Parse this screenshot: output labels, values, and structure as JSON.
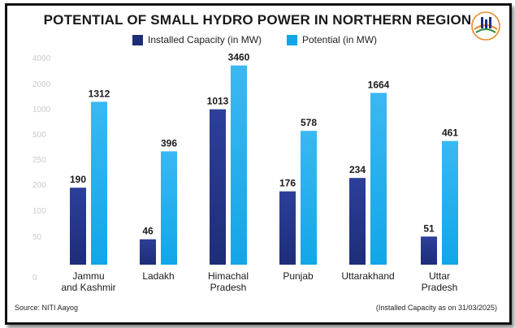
{
  "colors": {
    "installed": "#1e2d78",
    "potential": "#12a6e8",
    "installed_top": "#2c3f9a",
    "potential_top": "#3ab8f2"
  },
  "logo": {
    "icon": "pib-logo-icon"
  },
  "chart_data": {
    "type": "bar",
    "title": "POTENTIAL OF SMALL HYDRO POWER IN NORTHERN REGION",
    "categories": [
      [
        "Jammu",
        "and Kashmir"
      ],
      [
        "Ladakh"
      ],
      [
        "Himachal",
        "Pradesh"
      ],
      [
        "Punjab"
      ],
      [
        "Uttarakhand"
      ],
      [
        "Uttar",
        "Pradesh"
      ]
    ],
    "series": [
      {
        "name": "Installed Capacity (in MW)",
        "values": [
          190,
          46,
          1013,
          176,
          234,
          51
        ],
        "labels": [
          "190",
          "46",
          "1013",
          "176",
          "234",
          "51"
        ]
      },
      {
        "name": "Potential (in MW)",
        "values": [
          1312,
          396,
          3460,
          578,
          1664,
          461
        ],
        "labels": [
          "1312",
          "396",
          "3460",
          "578",
          "1664",
          "461"
        ]
      }
    ],
    "yticks": [
      "0",
      "50",
      "100",
      "150",
      "200",
      "250",
      "300",
      "350",
      "4000"
    ],
    "yticks_visible": [
      "0",
      "50",
      "100",
      "200",
      "250",
      "500",
      "1000",
      "2000",
      "4000"
    ],
    "ylabel": "",
    "xlabel": "",
    "source": "Source: NITI Aayog",
    "note": "(Installed Capacity as on 31/03/2025)"
  }
}
